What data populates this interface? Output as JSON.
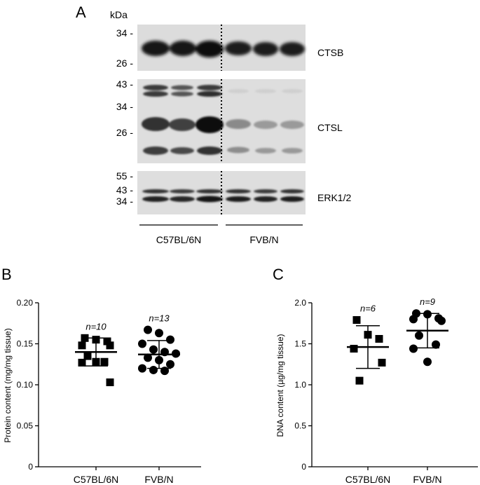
{
  "panels": {
    "a": {
      "letter": "A",
      "unit": "kDa",
      "blots": [
        {
          "label": "CTSB",
          "markers": [
            "34 -",
            "26 -"
          ]
        },
        {
          "label": "CTSL",
          "markers": [
            "43 -",
            "34 -",
            "26 -"
          ]
        },
        {
          "label": "ERK1/2",
          "markers": [
            "55 -",
            "43 -",
            "34 -"
          ]
        }
      ],
      "groups": [
        "C57BL/6N",
        "FVB/N"
      ]
    },
    "b": {
      "letter": "B"
    },
    "c": {
      "letter": "C"
    }
  },
  "chart_data": [
    {
      "type": "scatter",
      "panel": "B",
      "ylabel": "Protein content (mg/mg tissue)",
      "ylim": [
        0,
        0.2
      ],
      "yticks": [
        "0",
        "0.05",
        "0.10",
        "0.15",
        "0.20"
      ],
      "categories": [
        "C57BL/6N",
        "FVB/N"
      ],
      "marker_shapes": [
        "square",
        "circle"
      ],
      "annotations": [
        "n=10",
        "n=13"
      ],
      "series": [
        {
          "values": [
            0.157,
            0.155,
            0.153,
            0.148,
            0.148,
            0.135,
            0.128,
            0.127,
            0.128,
            0.103
          ],
          "mean": 0.14,
          "sd": 0.017
        },
        {
          "values": [
            0.167,
            0.163,
            0.155,
            0.15,
            0.143,
            0.14,
            0.138,
            0.133,
            0.13,
            0.125,
            0.12,
            0.118,
            0.117
          ],
          "mean": 0.137,
          "sd": 0.017
        }
      ]
    },
    {
      "type": "scatter",
      "panel": "C",
      "ylabel": "DNA content (µg/mg tissue)",
      "ylim": [
        0,
        2.0
      ],
      "yticks": [
        "0",
        "0.5",
        "1.0",
        "1.5",
        "2.0"
      ],
      "categories": [
        "C57BL/6N",
        "FVB/N"
      ],
      "marker_shapes": [
        "square",
        "circle"
      ],
      "annotations": [
        "n=6",
        "n=9"
      ],
      "series": [
        {
          "values": [
            1.79,
            1.61,
            1.56,
            1.44,
            1.27,
            1.05
          ],
          "mean": 1.46,
          "sd": 0.26
        },
        {
          "values": [
            1.87,
            1.86,
            1.81,
            1.8,
            1.78,
            1.6,
            1.49,
            1.44,
            1.28
          ],
          "mean": 1.66,
          "sd": 0.21
        }
      ]
    }
  ]
}
